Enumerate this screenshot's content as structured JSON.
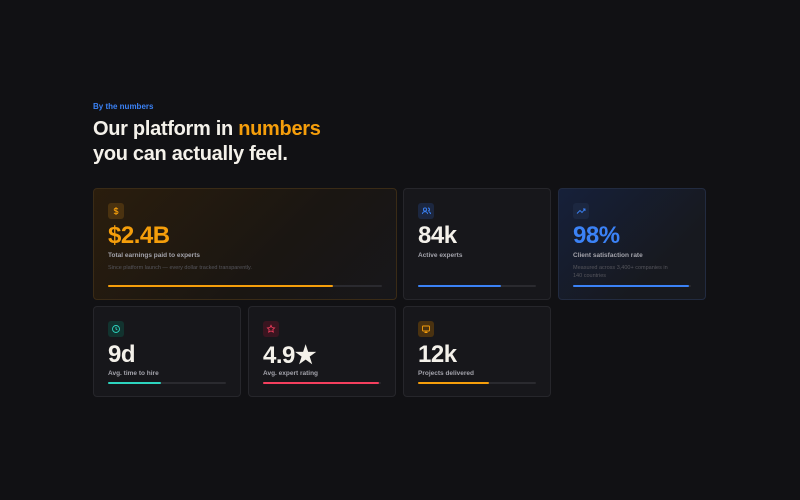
{
  "section": {
    "eyebrow": "By the numbers",
    "heading": {
      "prefix": "Our platform in",
      "highlight": "numbers",
      "line2": "you can actually feel."
    },
    "cards": [
      {
        "value": "$2.4B",
        "label": "Total earnings paid to experts",
        "description": "Since platform launch — every dollar tracked transparently."
      },
      {
        "value": "84k",
        "label": "Active experts"
      },
      {
        "value": "98%",
        "label": "Client satisfaction rate",
        "description": "Measured across 3,400+ companies in 140 countries"
      },
      {
        "value": "9d",
        "label": "Avg. time to hire"
      },
      {
        "value": "4.9★",
        "label": "Avg. expert rating"
      },
      {
        "value": "12k",
        "label": "Projects delivered"
      }
    ]
  }
}
